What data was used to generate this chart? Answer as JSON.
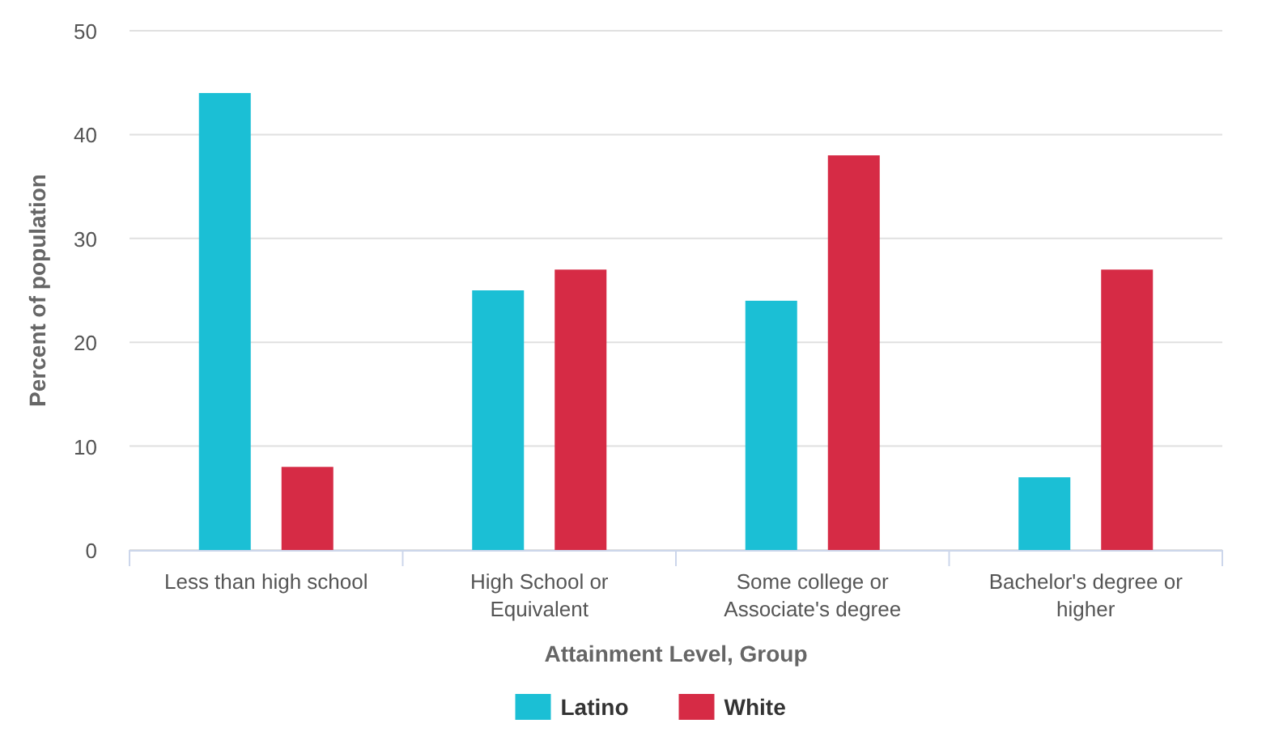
{
  "chart_data": {
    "type": "bar",
    "xlabel": "Attainment Level, Group",
    "ylabel": "Percent of population",
    "categories": [
      "Less than high school",
      "High School or Equivalent",
      "Some college or Associate's degree",
      "Bachelor's degree or higher"
    ],
    "series": [
      {
        "name": "Latino",
        "color": "#1bbfd5",
        "values": [
          44,
          25,
          24,
          7
        ]
      },
      {
        "name": "White",
        "color": "#d62b45",
        "values": [
          8,
          27,
          38,
          27
        ]
      }
    ],
    "ylim": [
      0,
      50
    ],
    "yticks": [
      0,
      10,
      20,
      30,
      40,
      50
    ],
    "grid": "y",
    "legend": "bottom"
  }
}
